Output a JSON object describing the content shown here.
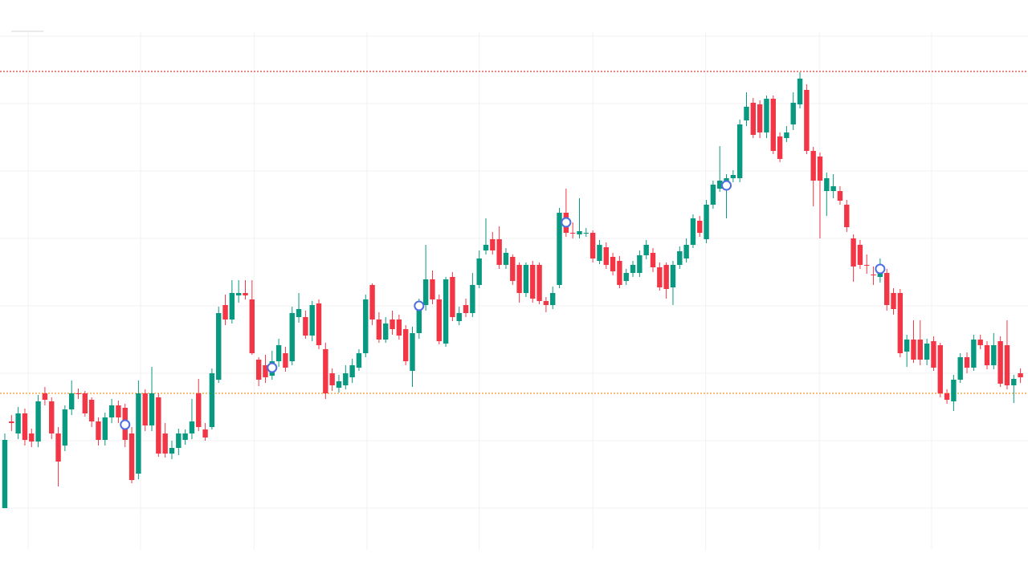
{
  "chart_data": {
    "type": "candlestick",
    "up_color": "#089981",
    "down_color": "#f23645",
    "grid": true,
    "xlim": [
      -0.72,
      153.13
    ],
    "xticks": [
      3.5,
      20.3,
      37.3,
      54.2,
      71,
      88,
      104.9,
      121.9,
      138.7
    ],
    "ylim": [
      32,
      677
    ],
    "yticks": [
      84,
      168,
      252,
      336,
      420,
      504,
      588,
      672
    ],
    "open": [
      84,
      192,
      177,
      202,
      177,
      167,
      227,
      217,
      177,
      162,
      207,
      227,
      227,
      219,
      192,
      169,
      197,
      212,
      209,
      177,
      127,
      227,
      187,
      222,
      177,
      152,
      159,
      169,
      177,
      227,
      182,
      185,
      244,
      337,
      319,
      349,
      352,
      344,
      269,
      262,
      249,
      267,
      277,
      267,
      322,
      322,
      299,
      339,
      282,
      252,
      234,
      237,
      247,
      259,
      277,
      362,
      319,
      294,
      319,
      319,
      307,
      255,
      302,
      337,
      369,
      344,
      289,
      372,
      317,
      337,
      327,
      362,
      405,
      419,
      419,
      387,
      397,
      387,
      352,
      387,
      387,
      342,
      337,
      362,
      452,
      427,
      425,
      427,
      427,
      392,
      409,
      397,
      392,
      367,
      377,
      377,
      399,
      402,
      384,
      387,
      359,
      387,
      395,
      412,
      442,
      419,
      462,
      482,
      487,
      495,
      495,
      567,
      589,
      587,
      552,
      594,
      547,
      545,
      562,
      587,
      605,
      529,
      522,
      479,
      479,
      479,
      462,
      420,
      412,
      387,
      375,
      372,
      377,
      352,
      352,
      279,
      294,
      294,
      269,
      292,
      287,
      227,
      217,
      244,
      272,
      259,
      294,
      287,
      262,
      292,
      287,
      237,
      252
    ],
    "high": [
      177,
      200,
      210,
      208,
      183,
      225,
      235,
      222,
      185,
      212,
      243,
      233,
      230,
      222,
      197,
      203,
      220,
      218,
      214,
      185,
      243,
      232,
      260,
      227,
      190,
      168,
      183,
      182,
      220,
      245,
      190,
      258,
      335,
      350,
      368,
      368,
      368,
      368,
      272,
      275,
      280,
      295,
      285,
      335,
      352,
      330,
      342,
      344,
      290,
      258,
      250,
      262,
      270,
      282,
      350,
      364,
      328,
      322,
      330,
      325,
      312,
      310,
      345,
      412,
      380,
      350,
      372,
      378,
      335,
      345,
      377,
      405,
      445,
      428,
      435,
      408,
      400,
      390,
      390,
      392,
      390,
      347,
      360,
      458,
      482,
      440,
      470,
      433,
      430,
      418,
      415,
      402,
      398,
      382,
      392,
      405,
      418,
      408,
      390,
      390,
      392,
      410,
      420,
      450,
      448,
      468,
      492,
      535,
      500,
      505,
      568,
      602,
      595,
      592,
      598,
      598,
      552,
      560,
      602,
      627,
      612,
      534,
      527,
      502,
      500,
      485,
      468,
      425,
      418,
      400,
      385,
      395,
      382,
      358,
      357,
      300,
      318,
      318,
      295,
      298,
      290,
      232,
      250,
      277,
      278,
      300,
      300,
      292,
      302,
      298,
      318,
      250,
      258
    ],
    "low": [
      84,
      180,
      170,
      162,
      160,
      160,
      212,
      170,
      111,
      155,
      200,
      220,
      198,
      185,
      162,
      162,
      190,
      190,
      160,
      115,
      120,
      180,
      180,
      148,
      147,
      145,
      150,
      163,
      170,
      180,
      168,
      182,
      240,
      312,
      314,
      340,
      344,
      275,
      236,
      240,
      244,
      260,
      254,
      262,
      315,
      295,
      292,
      282,
      220,
      230,
      228,
      232,
      240,
      255,
      272,
      312,
      290,
      290,
      300,
      294,
      262,
      235,
      295,
      330,
      338,
      288,
      285,
      317,
      312,
      322,
      322,
      358,
      400,
      400,
      382,
      382,
      362,
      340,
      347,
      340,
      338,
      328,
      332,
      358,
      422,
      420,
      420,
      422,
      390,
      388,
      382,
      374,
      358,
      362,
      372,
      372,
      394,
      378,
      355,
      345,
      337,
      382,
      390,
      408,
      422,
      414,
      457,
      478,
      445,
      490,
      490,
      560,
      545,
      545,
      545,
      525,
      515,
      540,
      555,
      582,
      525,
      460,
      420,
      448,
      470,
      462,
      428,
      366,
      382,
      376,
      362,
      365,
      330,
      325,
      272,
      260,
      265,
      262,
      262,
      255,
      222,
      214,
      205,
      240,
      252,
      255,
      282,
      257,
      257,
      235,
      232,
      215,
      240
    ],
    "close": [
      169,
      190,
      202,
      169,
      167,
      217,
      219,
      177,
      142,
      207,
      227,
      226,
      202,
      192,
      169,
      197,
      212,
      197,
      169,
      119,
      227,
      187,
      227,
      152,
      152,
      159,
      177,
      177,
      192,
      185,
      172,
      252,
      327,
      319,
      352,
      352,
      349,
      277,
      244,
      247,
      267,
      287,
      259,
      327,
      332,
      299,
      337,
      287,
      227,
      237,
      242,
      252,
      262,
      277,
      344,
      319,
      294,
      314,
      307,
      299,
      267,
      302,
      337,
      369,
      344,
      292,
      369,
      322,
      327,
      327,
      362,
      395,
      412,
      405,
      387,
      402,
      367,
      352,
      387,
      345,
      342,
      337,
      352,
      452,
      427,
      426,
      429,
      427,
      395,
      412,
      387,
      379,
      362,
      377,
      387,
      399,
      412,
      384,
      359,
      357,
      387,
      404,
      412,
      445,
      427,
      462,
      487,
      492,
      495,
      499,
      562,
      584,
      549,
      552,
      594,
      529,
      519,
      552,
      589,
      619,
      529,
      492,
      492,
      495,
      485,
      467,
      434,
      385,
      387,
      386,
      374,
      387,
      337,
      332,
      277,
      294,
      269,
      269,
      289,
      259,
      227,
      219,
      244,
      272,
      259,
      294,
      287,
      262,
      287,
      239,
      237,
      245,
      247
    ],
    "hlines": [
      {
        "value": 628,
        "color": "#e0413a"
      },
      {
        "value": 227,
        "color": "#f09a2c"
      }
    ],
    "markers": {
      "color": "#4f6fe0",
      "index": [
        18,
        40,
        62,
        84,
        108,
        131
      ],
      "values": [
        188,
        259,
        336,
        440,
        486,
        382
      ]
    }
  }
}
